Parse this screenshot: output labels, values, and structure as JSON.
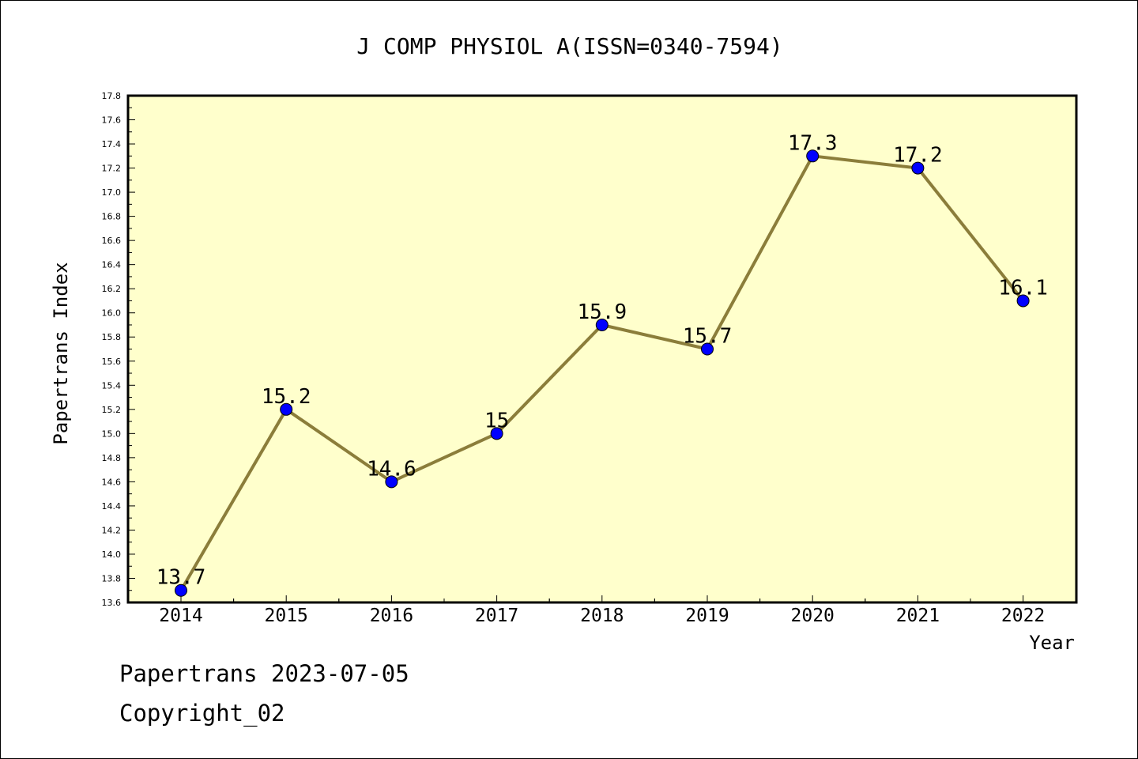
{
  "chart_data": {
    "type": "line",
    "title": "J COMP PHYSIOL A(ISSN=0340-7594)",
    "xlabel": "Year",
    "ylabel": "Papertrans Index",
    "categories": [
      "2014",
      "2015",
      "2016",
      "2017",
      "2018",
      "2019",
      "2020",
      "2021",
      "2022"
    ],
    "values": [
      13.7,
      15.2,
      14.6,
      15,
      15.9,
      15.7,
      17.3,
      17.2,
      16.1
    ],
    "data_labels": [
      "13.7",
      "15.2",
      "14.6",
      "15",
      "15.9",
      "15.7",
      "17.3",
      "17.2",
      "16.1"
    ],
    "ylim": [
      13.6,
      17.8
    ],
    "yticks": [
      "13.6",
      "13.8",
      "14.0",
      "14.2",
      "14.4",
      "14.6",
      "14.8",
      "15.0",
      "15.2",
      "15.4",
      "15.6",
      "15.8",
      "16.0",
      "16.2",
      "16.4",
      "16.6",
      "16.8",
      "17.0",
      "17.2",
      "17.4",
      "17.6",
      "17.8"
    ],
    "grid": false,
    "colors": {
      "plot_background": "#ffffcc",
      "line": "#8b7d3a",
      "marker": "#0000ff"
    }
  },
  "footer": {
    "date_line": "Papertrans 2023-07-05",
    "copyright": "Copyright_02"
  }
}
